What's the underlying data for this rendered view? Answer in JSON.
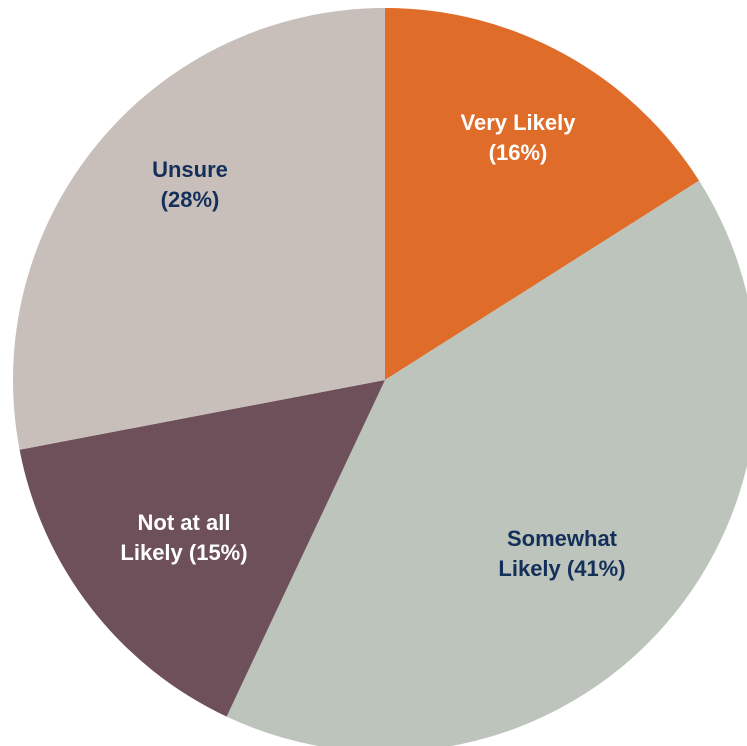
{
  "chart_data": {
    "type": "pie",
    "title": "",
    "start_angle_deg": 0,
    "direction": "clockwise",
    "label_color": "#14305a",
    "slices": [
      {
        "label_lines": [
          "Very Likely",
          "(16%)"
        ],
        "value": 16,
        "color": "#e06c2a",
        "label_color": "#ffffff"
      },
      {
        "label_lines": [
          "Somewhat",
          "Likely (41%)"
        ],
        "value": 41,
        "color": "#bcc4bb",
        "label_color": "#14305a"
      },
      {
        "label_lines": [
          "Not at all",
          "Likely (15%)"
        ],
        "value": 15,
        "color": "#6e505a",
        "label_color": "#ffffff"
      },
      {
        "label_lines": [
          "Unsure",
          "(28%)"
        ],
        "value": 28,
        "color": "#c9bfba",
        "label_color": "#14305a"
      }
    ]
  }
}
